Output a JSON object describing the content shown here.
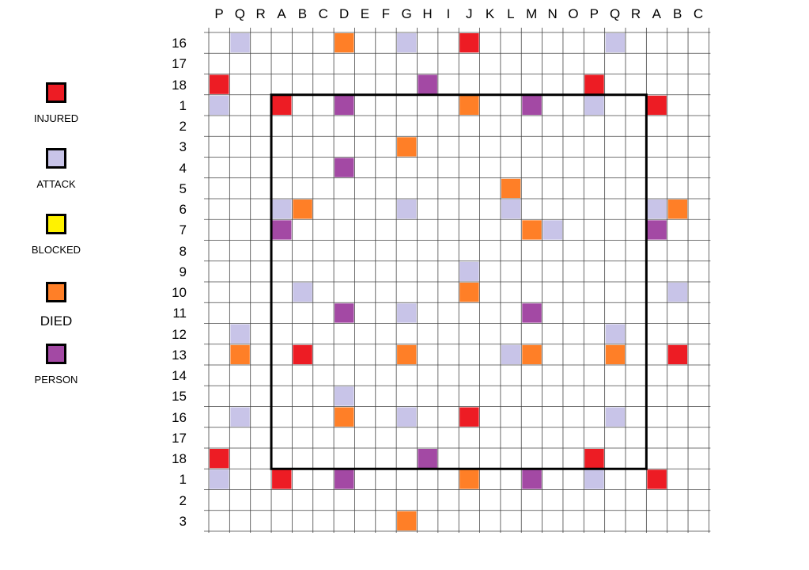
{
  "columns": [
    "P",
    "Q",
    "R",
    "A",
    "B",
    "C",
    "D",
    "E",
    "F",
    "G",
    "H",
    "I",
    "J",
    "K",
    "L",
    "M",
    "N",
    "O",
    "P",
    "Q",
    "R",
    "A",
    "B",
    "C"
  ],
  "rows": [
    "16",
    "17",
    "18",
    "1",
    "2",
    "3",
    "4",
    "5",
    "6",
    "7",
    "8",
    "9",
    "10",
    "11",
    "12",
    "13",
    "14",
    "15",
    "16",
    "17",
    "18",
    "1",
    "2",
    "3"
  ],
  "colors": {
    "injured": "#ed1c24",
    "attack": "#c8c4e8",
    "blocked": "#fff200",
    "died": "#ff7f27",
    "person": "#a349a4"
  },
  "legend": [
    {
      "status": "injured",
      "label": "INJURED"
    },
    {
      "status": "attack",
      "label": "ATTACK"
    },
    {
      "status": "blocked",
      "label": "BLOCKED"
    },
    {
      "status": "died",
      "label": "DIED"
    },
    {
      "status": "person",
      "label": "PERSON"
    }
  ],
  "highlighted_region": {
    "first_col": 3,
    "last_col": 20,
    "first_row": 3,
    "last_row": 20
  },
  "cells": [
    {
      "row": 0,
      "col": 1,
      "status": "attack"
    },
    {
      "row": 0,
      "col": 6,
      "status": "died"
    },
    {
      "row": 0,
      "col": 9,
      "status": "attack"
    },
    {
      "row": 0,
      "col": 12,
      "status": "injured"
    },
    {
      "row": 0,
      "col": 19,
      "status": "attack"
    },
    {
      "row": 2,
      "col": 0,
      "status": "injured"
    },
    {
      "row": 2,
      "col": 10,
      "status": "person"
    },
    {
      "row": 2,
      "col": 18,
      "status": "injured"
    },
    {
      "row": 3,
      "col": 0,
      "status": "attack"
    },
    {
      "row": 3,
      "col": 3,
      "status": "injured"
    },
    {
      "row": 3,
      "col": 6,
      "status": "person"
    },
    {
      "row": 3,
      "col": 12,
      "status": "died"
    },
    {
      "row": 3,
      "col": 15,
      "status": "person"
    },
    {
      "row": 3,
      "col": 18,
      "status": "attack"
    },
    {
      "row": 3,
      "col": 21,
      "status": "injured"
    },
    {
      "row": 5,
      "col": 9,
      "status": "died"
    },
    {
      "row": 6,
      "col": 6,
      "status": "person"
    },
    {
      "row": 7,
      "col": 14,
      "status": "died"
    },
    {
      "row": 8,
      "col": 3,
      "status": "attack"
    },
    {
      "row": 8,
      "col": 4,
      "status": "died"
    },
    {
      "row": 8,
      "col": 9,
      "status": "attack"
    },
    {
      "row": 8,
      "col": 14,
      "status": "attack"
    },
    {
      "row": 8,
      "col": 21,
      "status": "attack"
    },
    {
      "row": 8,
      "col": 22,
      "status": "died"
    },
    {
      "row": 9,
      "col": 3,
      "status": "person"
    },
    {
      "row": 9,
      "col": 15,
      "status": "died"
    },
    {
      "row": 9,
      "col": 16,
      "status": "attack"
    },
    {
      "row": 9,
      "col": 21,
      "status": "person"
    },
    {
      "row": 11,
      "col": 12,
      "status": "attack"
    },
    {
      "row": 12,
      "col": 4,
      "status": "attack"
    },
    {
      "row": 12,
      "col": 12,
      "status": "died"
    },
    {
      "row": 12,
      "col": 22,
      "status": "attack"
    },
    {
      "row": 13,
      "col": 6,
      "status": "person"
    },
    {
      "row": 13,
      "col": 9,
      "status": "attack"
    },
    {
      "row": 13,
      "col": 15,
      "status": "person"
    },
    {
      "row": 14,
      "col": 1,
      "status": "attack"
    },
    {
      "row": 14,
      "col": 19,
      "status": "attack"
    },
    {
      "row": 15,
      "col": 1,
      "status": "died"
    },
    {
      "row": 15,
      "col": 4,
      "status": "injured"
    },
    {
      "row": 15,
      "col": 9,
      "status": "died"
    },
    {
      "row": 15,
      "col": 14,
      "status": "attack"
    },
    {
      "row": 15,
      "col": 15,
      "status": "died"
    },
    {
      "row": 15,
      "col": 19,
      "status": "died"
    },
    {
      "row": 15,
      "col": 22,
      "status": "injured"
    },
    {
      "row": 17,
      "col": 6,
      "status": "attack"
    },
    {
      "row": 18,
      "col": 1,
      "status": "attack"
    },
    {
      "row": 18,
      "col": 6,
      "status": "died"
    },
    {
      "row": 18,
      "col": 9,
      "status": "attack"
    },
    {
      "row": 18,
      "col": 12,
      "status": "injured"
    },
    {
      "row": 18,
      "col": 19,
      "status": "attack"
    },
    {
      "row": 20,
      "col": 0,
      "status": "injured"
    },
    {
      "row": 20,
      "col": 10,
      "status": "person"
    },
    {
      "row": 20,
      "col": 18,
      "status": "injured"
    },
    {
      "row": 21,
      "col": 0,
      "status": "attack"
    },
    {
      "row": 21,
      "col": 3,
      "status": "injured"
    },
    {
      "row": 21,
      "col": 6,
      "status": "person"
    },
    {
      "row": 21,
      "col": 12,
      "status": "died"
    },
    {
      "row": 21,
      "col": 15,
      "status": "person"
    },
    {
      "row": 21,
      "col": 18,
      "status": "attack"
    },
    {
      "row": 21,
      "col": 21,
      "status": "injured"
    },
    {
      "row": 23,
      "col": 9,
      "status": "died"
    }
  ]
}
